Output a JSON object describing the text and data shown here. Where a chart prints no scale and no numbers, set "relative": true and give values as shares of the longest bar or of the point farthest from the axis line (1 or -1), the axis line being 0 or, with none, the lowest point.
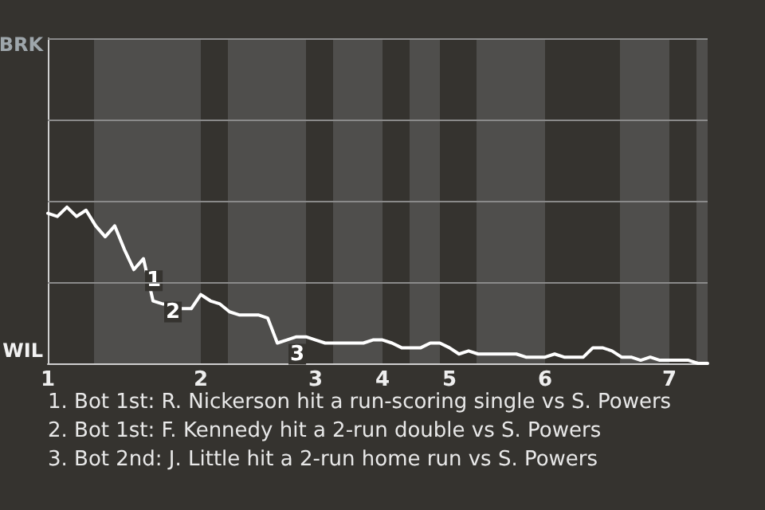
{
  "chart_data": {
    "type": "line",
    "relative": true,
    "categories": [
      "1",
      null,
      null,
      null,
      null,
      null,
      null,
      null,
      null,
      null,
      null,
      null,
      null,
      null,
      null,
      null,
      "2",
      null,
      null,
      null,
      null,
      null,
      null,
      null,
      null,
      null,
      null,
      null,
      "3",
      null,
      null,
      null,
      null,
      null,
      null,
      "4",
      null,
      null,
      null,
      null,
      null,
      null,
      "5",
      null,
      null,
      null,
      null,
      null,
      null,
      null,
      null,
      null,
      "6",
      null,
      null,
      null,
      null,
      null,
      null,
      null,
      null,
      null,
      null,
      null,
      null,
      "7",
      null,
      null,
      null,
      null
    ],
    "series": [
      {
        "color": "#ffffff",
        "values": [
          0.96,
          0.94,
          1,
          0.94,
          0.98,
          0.88,
          0.81,
          0.88,
          0.73,
          0.6,
          0.67,
          0.4,
          0.38,
          0.38,
          0.35,
          0.35,
          0.44,
          0.4,
          0.38,
          0.33,
          0.31,
          0.31,
          0.31,
          0.29,
          0.13,
          0.15,
          0.17,
          0.17,
          0.15,
          0.13,
          0.13,
          0.13,
          0.13,
          0.13,
          0.15,
          0.15,
          0.13,
          0.1,
          0.1,
          0.1,
          0.13,
          0.13,
          0.1,
          0.06,
          0.08,
          0.06,
          0.06,
          0.06,
          0.06,
          0.06,
          0.04,
          0.04,
          0.04,
          0.06,
          0.04,
          0.04,
          0.04,
          0.1,
          0.1,
          0.08,
          0.04,
          0.04,
          0.02,
          0.04,
          0.02,
          0.02,
          0.02,
          0.02,
          0,
          0
        ]
      }
    ],
    "marker": "none",
    "ref_lines": [
      {
        "axis": "y",
        "value": 0.52,
        "color": "#8a8a8a"
      },
      {
        "axis": "y",
        "value": 1.04,
        "color": "#8a8a8a"
      },
      {
        "axis": "y",
        "value": 1.56,
        "color": "#8a8a8a"
      },
      {
        "axis": "y",
        "value": 2.08,
        "color": "#8a8a8a"
      }
    ],
    "annotations": [
      "BRK",
      "WIL",
      {
        "text": "1",
        "y": 0.6
      },
      {
        "text": "2",
        "y": 0.4
      },
      {
        "text": "3",
        "y": 0.13
      },
      "1. Bot 1st: R. Nickerson hit a run-scoring single vs S. Powers",
      "2. Bot 1st: F. Kennedy hit a 2-run double vs S. Powers",
      "3. Bot 2nd: J. Little hit a 2-run home run vs S. Powers"
    ]
  }
}
